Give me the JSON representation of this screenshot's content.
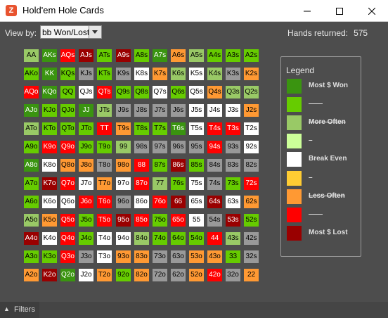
{
  "window": {
    "title": "Hold'em Hole Cards",
    "icon": "Z"
  },
  "toolbar": {
    "view_by_label": "View by:",
    "view_by_value": "bb Won/Lost",
    "hands_label": "Hands returned:",
    "hands_value": "575"
  },
  "palette": {
    "dg": "#3a9410",
    "lg": "#66cc00",
    "pg": "#99c966",
    "vp": "#ccff99",
    "wh": "#ffffff",
    "ye": "#ffcc33",
    "or": "#ff9933",
    "rd": "#ff0000",
    "dr": "#990000",
    "gy": "#999999"
  },
  "grid": {
    "rows": [
      [
        "AA",
        "AKs",
        "AQs",
        "AJs",
        "ATs",
        "A9s",
        "A8s",
        "A7s",
        "A6s",
        "A5s",
        "A4s",
        "A3s",
        "A2s"
      ],
      [
        "AKo",
        "KK",
        "KQs",
        "KJs",
        "KTs",
        "K9s",
        "K8s",
        "K7s",
        "K6s",
        "K5s",
        "K4s",
        "K3s",
        "K2s"
      ],
      [
        "AQo",
        "KQo",
        "QQ",
        "QJs",
        "QTs",
        "Q9s",
        "Q8s",
        "Q7s",
        "Q6s",
        "Q5s",
        "Q4s",
        "Q3s",
        "Q2s"
      ],
      [
        "AJo",
        "KJo",
        "QJo",
        "JJ",
        "JTs",
        "J9s",
        "J8s",
        "J7s",
        "J6s",
        "J5s",
        "J4s",
        "J3s",
        "J2s"
      ],
      [
        "ATo",
        "KTo",
        "QTo",
        "JTo",
        "TT",
        "T9s",
        "T8s",
        "T7s",
        "T6s",
        "T5s",
        "T4s",
        "T3s",
        "T2s"
      ],
      [
        "A9o",
        "K9o",
        "Q9o",
        "J9o",
        "T9o",
        "99",
        "98s",
        "97s",
        "96s",
        "95s",
        "94s",
        "93s",
        "92s"
      ],
      [
        "A8o",
        "K8o",
        "Q8o",
        "J8o",
        "T8o",
        "98o",
        "88",
        "87s",
        "86s",
        "85s",
        "84s",
        "83s",
        "82s"
      ],
      [
        "A7o",
        "K7o",
        "Q7o",
        "J7o",
        "T7o",
        "97o",
        "87o",
        "77",
        "76s",
        "75s",
        "74s",
        "73s",
        "72s"
      ],
      [
        "A6o",
        "K6o",
        "Q6o",
        "J6o",
        "T6o",
        "96o",
        "86o",
        "76o",
        "66",
        "65s",
        "64s",
        "63s",
        "62s"
      ],
      [
        "A5o",
        "K5o",
        "Q5o",
        "J5o",
        "T5o",
        "95o",
        "85o",
        "75o",
        "65o",
        "55",
        "54s",
        "53s",
        "52s"
      ],
      [
        "A4o",
        "K4o",
        "Q4o",
        "J4o",
        "T4o",
        "94o",
        "84o",
        "74o",
        "64o",
        "54o",
        "44",
        "43s",
        "42s"
      ],
      [
        "A3o",
        "K3o",
        "Q3o",
        "J3o",
        "T3o",
        "93o",
        "83o",
        "73o",
        "63o",
        "53o",
        "43o",
        "33",
        "32s"
      ],
      [
        "A2o",
        "K2o",
        "Q2o",
        "J2o",
        "T2o",
        "92o",
        "82o",
        "72o",
        "62o",
        "52o",
        "42o",
        "32o",
        "22"
      ]
    ],
    "colors": [
      [
        "pg",
        "dg",
        "rd",
        "dr",
        "lg",
        "dr",
        "lg",
        "dg",
        "or",
        "pg",
        "lg",
        "lg",
        "lg"
      ],
      [
        "lg",
        "dg",
        "lg",
        "gy",
        "lg",
        "gy",
        "wh",
        "or",
        "pg",
        "wh",
        "pg",
        "gy",
        "or"
      ],
      [
        "rd",
        "dg",
        "lg",
        "wh",
        "rd",
        "lg",
        "lg",
        "wh",
        "lg",
        "wh",
        "or",
        "pg",
        "pg"
      ],
      [
        "dg",
        "lg",
        "lg",
        "dg",
        "pg",
        "gy",
        "gy",
        "gy",
        "gy",
        "wh",
        "wh",
        "wh",
        "or"
      ],
      [
        "pg",
        "lg",
        "lg",
        "lg",
        "rd",
        "or",
        "lg",
        "lg",
        "dg",
        "wh",
        "rd",
        "rd",
        "wh"
      ],
      [
        "lg",
        "rd",
        "rd",
        "lg",
        "lg",
        "pg",
        "gy",
        "gy",
        "gy",
        "gy",
        "rd",
        "gy",
        "wh"
      ],
      [
        "dg",
        "wh",
        "or",
        "or",
        "gy",
        "or",
        "rd",
        "lg",
        "dr",
        "lg",
        "gy",
        "gy",
        "gy"
      ],
      [
        "lg",
        "dr",
        "rd",
        "wh",
        "or",
        "wh",
        "rd",
        "pg",
        "lg",
        "wh",
        "gy",
        "lg",
        "rd"
      ],
      [
        "lg",
        "wh",
        "wh",
        "rd",
        "rd",
        "gy",
        "wh",
        "rd",
        "dr",
        "wh",
        "dr",
        "wh",
        "or"
      ],
      [
        "pg",
        "or",
        "rd",
        "lg",
        "rd",
        "dr",
        "rd",
        "lg",
        "rd",
        "wh",
        "gy",
        "dr",
        "lg"
      ],
      [
        "dr",
        "wh",
        "rd",
        "lg",
        "wh",
        "wh",
        "pg",
        "lg",
        "lg",
        "lg",
        "rd",
        "pg",
        "gy"
      ],
      [
        "lg",
        "lg",
        "rd",
        "gy",
        "wh",
        "or",
        "or",
        "gy",
        "gy",
        "or",
        "or",
        "lg",
        "gy"
      ],
      [
        "or",
        "dr",
        "dg",
        "wh",
        "or",
        "lg",
        "or",
        "gy",
        "gy",
        "or",
        "rd",
        "gy",
        "or"
      ]
    ]
  },
  "legend": {
    "title": "Legend",
    "items": [
      {
        "label": "Most $ Won",
        "color": "dg",
        "strike": false
      },
      {
        "label": "——",
        "color": "lg",
        "strike": false
      },
      {
        "label": "More Often",
        "color": "pg",
        "strike": true
      },
      {
        "label": "–",
        "color": "vp",
        "strike": false
      },
      {
        "label": "Break Even",
        "color": "wh",
        "strike": false
      },
      {
        "label": "–",
        "color": "ye",
        "strike": false
      },
      {
        "label": "Less Often",
        "color": "or",
        "strike": true
      },
      {
        "label": "——",
        "color": "rd",
        "strike": false
      },
      {
        "label": "Most $ Lost",
        "color": "dr",
        "strike": false
      }
    ]
  },
  "footer": {
    "filters_label": "Filters"
  }
}
